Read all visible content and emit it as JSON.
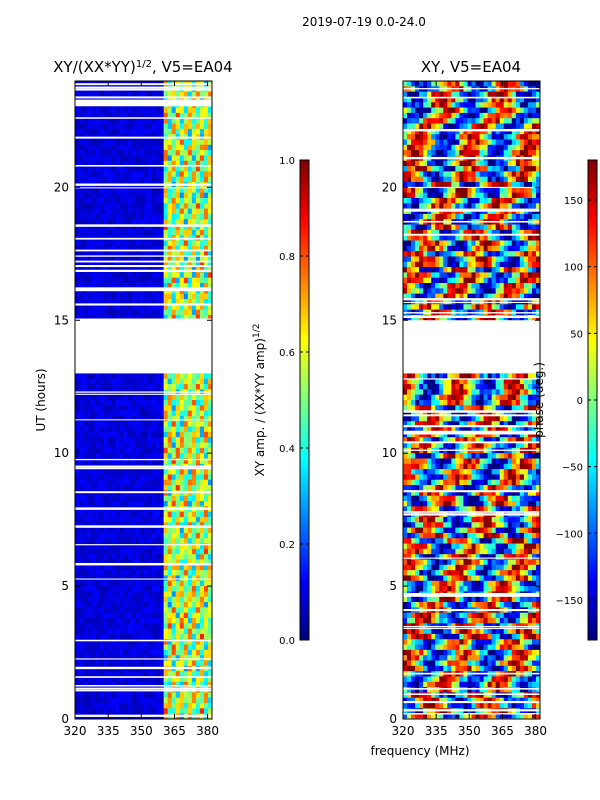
{
  "figure": {
    "suptitle": "2019-07-19 0.0-24.0",
    "xlabel": "frequency (MHz)"
  },
  "chart_data": [
    {
      "type": "heatmap",
      "title_base": "XY/(XX*YY)",
      "title_sup": "1/2",
      "title_suffix": ", V5=EA04",
      "ylabel": "UT (hours)",
      "xlim": [
        320,
        382
      ],
      "ylim": [
        0,
        24
      ],
      "x_ticks": [
        320,
        335,
        350,
        365,
        380
      ],
      "y_ticks": [
        0,
        5,
        10,
        15,
        20
      ],
      "colorbar": {
        "label_base": "XY amp. / (XX*YY amp)",
        "label_sup": "1/2",
        "range": [
          0.0,
          1.0
        ],
        "ticks": [
          "0.0",
          "0.2",
          "0.4",
          "0.6",
          "0.8",
          "1.0"
        ],
        "tick_values": [
          0.0,
          0.2,
          0.4,
          0.6,
          0.8,
          1.0
        ],
        "colormap": "jet"
      },
      "bands": [
        {
          "mhz_from": 320,
          "mhz_to": 361,
          "level": 0.08,
          "description": "low amplitude (deep blue)"
        },
        {
          "mhz_from": 361,
          "mhz_to": 382,
          "level": 0.45,
          "description": "high amplitude stripes (cyan/green/yellow)"
        }
      ],
      "gap_hours": [
        [
          13.0,
          14.0
        ],
        [
          13.7,
          15.0
        ],
        [
          23.05,
          23.3
        ]
      ]
    },
    {
      "type": "heatmap",
      "title": "XY, V5=EA04",
      "ylim": [
        0,
        24
      ],
      "xlim": [
        320,
        382
      ],
      "x_ticks": [
        320,
        335,
        350,
        365,
        380
      ],
      "y_ticks": [
        0,
        5,
        10,
        15,
        20
      ],
      "colorbar": {
        "label": "phase (deg.)",
        "range": [
          -180,
          180
        ],
        "ticks": [
          "−150",
          "−100",
          "−50",
          "0",
          "50",
          "100",
          "150"
        ],
        "tick_values": [
          -150,
          -100,
          -50,
          0,
          50,
          100,
          150
        ],
        "colormap": "jet"
      },
      "gap_hours": [
        [
          13.0,
          14.0
        ],
        [
          13.7,
          15.0
        ]
      ]
    }
  ],
  "colors": {
    "jet_stops": [
      "#00007f",
      "#0000ff",
      "#007fff",
      "#00ffff",
      "#7fff7f",
      "#ffff00",
      "#ff7f00",
      "#ff0000",
      "#7f0000"
    ]
  }
}
